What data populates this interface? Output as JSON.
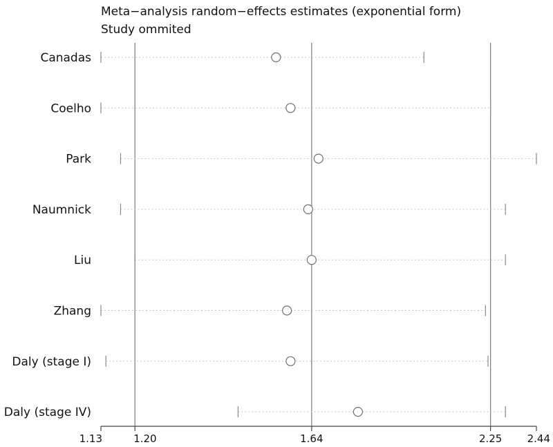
{
  "chart_data": {
    "type": "scatter",
    "title": "Meta−analysis random−effects estimates (exponential form)",
    "subtitle": "Study ommited",
    "x_scale": "log",
    "xlim": [
      1.13,
      2.44
    ],
    "xticks": [
      1.13,
      1.2,
      1.64,
      2.25,
      2.44
    ],
    "xtick_labels": [
      "1.13",
      "1.20",
      "1.64",
      "2.25",
      "2.44"
    ],
    "reference_lines": [
      1.2,
      1.64,
      2.25
    ],
    "grid": false,
    "legend": "none",
    "studies": [
      "Canadas",
      "Coelho",
      "Park",
      "Naumnick",
      "Liu",
      "Zhang",
      "Daly (stage I)",
      "Daly (stage IV)"
    ],
    "estimates": [
      1.54,
      1.58,
      1.66,
      1.63,
      1.64,
      1.57,
      1.58,
      1.78
    ],
    "ci_lower": [
      1.13,
      1.13,
      1.17,
      1.17,
      1.2,
      1.13,
      1.14,
      1.44
    ],
    "ci_upper": [
      2.0,
      2.25,
      2.44,
      2.31,
      2.31,
      2.23,
      2.24,
      2.31
    ]
  }
}
